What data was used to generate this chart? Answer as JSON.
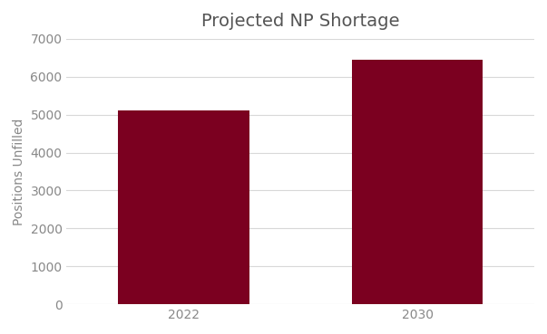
{
  "title": "Projected NP Shortage",
  "categories": [
    "2022",
    "2030"
  ],
  "values": [
    5100,
    6450
  ],
  "bar_color": "#7B0020",
  "ylabel": "Positions Unfilled",
  "ylim": [
    0,
    7000
  ],
  "yticks": [
    0,
    1000,
    2000,
    3000,
    4000,
    5000,
    6000,
    7000
  ],
  "bar_width": 0.28,
  "background_color": "#ffffff",
  "title_fontsize": 14,
  "axis_label_fontsize": 10,
  "tick_fontsize": 10,
  "grid_color": "#d8d8d8",
  "text_color": "#888888",
  "title_color": "#555555"
}
